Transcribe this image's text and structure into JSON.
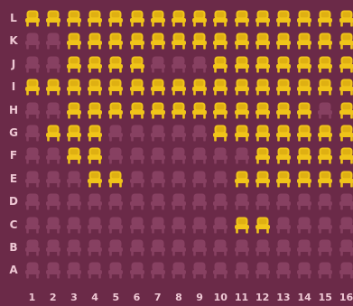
{
  "colors": {
    "background": "#6b2a48",
    "label": "#eec8d4",
    "seat_available": "#f0c419",
    "seat_available_shade": "#c99a0a",
    "seat_taken": "#874061"
  },
  "seat_icon": "chair-icon",
  "rows": [
    {
      "label": "L",
      "available": [
        1,
        2,
        3,
        4,
        5,
        6,
        7,
        8,
        9,
        10,
        11,
        12,
        13,
        14,
        15,
        16
      ]
    },
    {
      "label": "K",
      "available": [
        3,
        4,
        5,
        6,
        7,
        8,
        9,
        10,
        11,
        12,
        13,
        14,
        15,
        16
      ]
    },
    {
      "label": "J",
      "available": [
        3,
        4,
        5,
        6,
        10,
        11,
        12,
        13,
        14,
        15,
        16
      ]
    },
    {
      "label": "I",
      "available": [
        1,
        2,
        3,
        4,
        5,
        6,
        7,
        8,
        9,
        10,
        11,
        12,
        13,
        14,
        15,
        16
      ]
    },
    {
      "label": "H",
      "available": [
        3,
        4,
        5,
        6,
        7,
        8,
        9,
        10,
        11,
        12,
        13,
        14,
        16
      ]
    },
    {
      "label": "G",
      "available": [
        2,
        3,
        4,
        10,
        11,
        12,
        13,
        14,
        15,
        16
      ]
    },
    {
      "label": "F",
      "available": [
        3,
        4,
        12,
        13,
        14,
        15,
        16
      ]
    },
    {
      "label": "E",
      "available": [
        4,
        5,
        11,
        12,
        13,
        14,
        15,
        16
      ]
    },
    {
      "label": "D",
      "available": []
    },
    {
      "label": "C",
      "available": [
        11,
        12
      ]
    },
    {
      "label": "B",
      "available": []
    },
    {
      "label": "A",
      "available": []
    }
  ],
  "columns": [
    "1",
    "2",
    "3",
    "4",
    "5",
    "6",
    "7",
    "8",
    "9",
    "10",
    "11",
    "12",
    "13",
    "14",
    "15",
    "16"
  ]
}
